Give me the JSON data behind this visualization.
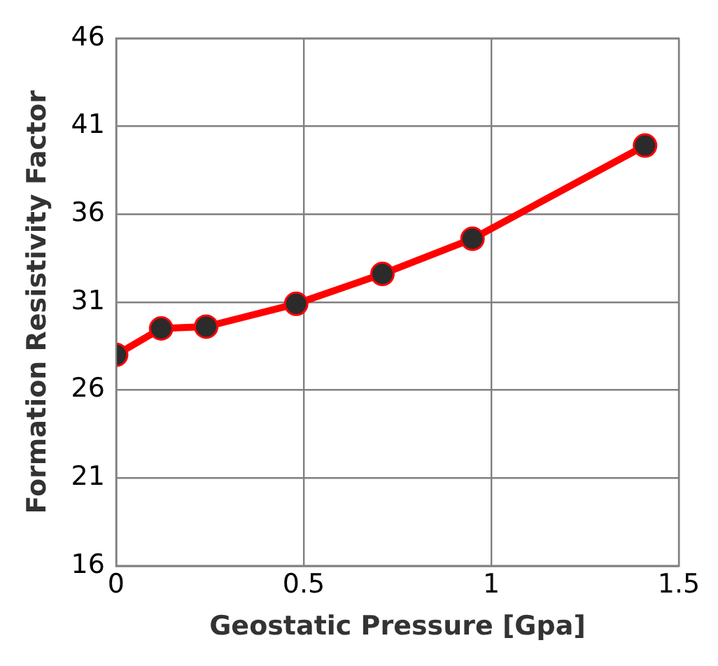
{
  "chart_data": {
    "type": "line",
    "xlabel": "Geostatic Pressure [Gpa]",
    "ylabel": "Formation Resistivity Factor",
    "x": [
      0,
      0.12,
      0.24,
      0.48,
      0.71,
      0.95,
      1.41
    ],
    "series": [
      {
        "color": "#ff0000",
        "values": [
          28.0,
          29.5,
          29.6,
          30.9,
          32.6,
          34.6,
          39.9
        ]
      }
    ],
    "xlim": [
      0,
      1.5
    ],
    "xticks": [
      0,
      0.5,
      1,
      1.5
    ],
    "ylim": [
      16,
      46
    ],
    "yticks": [
      16,
      21,
      26,
      31,
      36,
      41,
      46
    ],
    "grid": true,
    "legend": false,
    "marker": "circle",
    "line_style": "solid"
  }
}
